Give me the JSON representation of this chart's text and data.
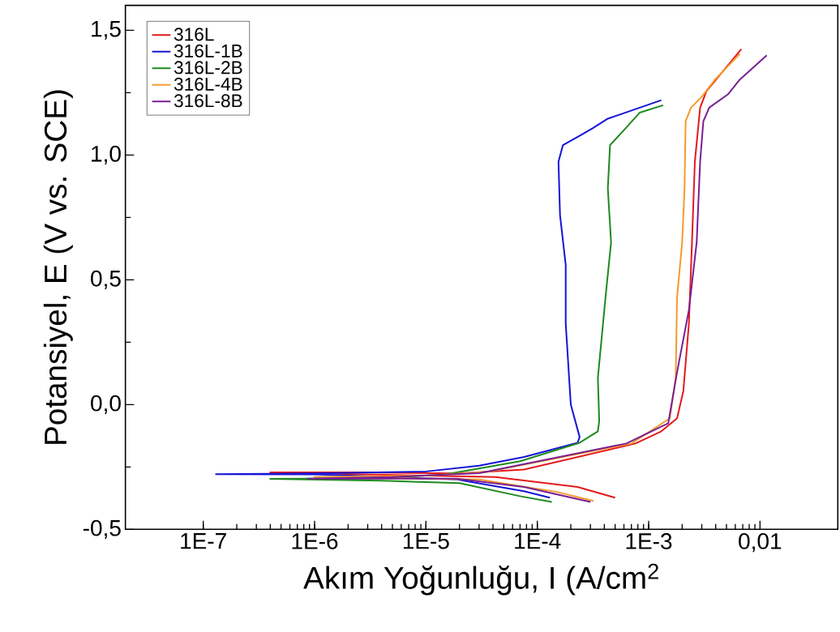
{
  "chart_data": {
    "type": "line",
    "xlabel": "Akım Yoğunluğu, I (A/cm$^{2}$",
    "ylabel": "Potansiyel, E (V vs. SCE)",
    "log": "x",
    "xlim": [
      2e-08,
      0.05
    ],
    "ylim": [
      -0.5,
      1.6
    ],
    "xticks": [
      {
        "value": 1e-07,
        "label": "1E-7"
      },
      {
        "value": 1e-06,
        "label": "1E-6"
      },
      {
        "value": 1e-05,
        "label": "1E-5"
      },
      {
        "value": 0.0001,
        "label": "1E-4"
      },
      {
        "value": 0.001,
        "label": "1E-3"
      },
      {
        "value": 0.01,
        "label": "0,01"
      }
    ],
    "yticks": [
      {
        "value": -0.5,
        "label": "-0,5"
      },
      {
        "value": 0,
        "label": "0,0"
      },
      {
        "value": 0.5,
        "label": "0,5"
      },
      {
        "value": 1.0,
        "label": "1,0"
      },
      {
        "value": 1.5,
        "label": "1,5"
      }
    ],
    "legend": "top left",
    "grid": false,
    "marker": "none",
    "line_style": "solid",
    "series": [
      {
        "name": "316L",
        "color": "#e31a1c",
        "x": [
          0.0005,
          0.00023,
          4.2e-05,
          1e-05,
          4e-07,
          3e-06,
          2e-05,
          7.6e-05,
          0.00076,
          0.0013,
          0.0018,
          0.00205,
          0.0023,
          0.00245,
          0.0026,
          0.0029,
          0.0033,
          0.0068
        ],
        "values": [
          -0.373,
          -0.33,
          -0.29,
          -0.285,
          -0.272,
          -0.272,
          -0.276,
          -0.26,
          -0.156,
          -0.107,
          -0.055,
          0.055,
          0.325,
          0.65,
          0.974,
          1.19,
          1.256,
          1.425
        ]
      },
      {
        "name": "316L-1B",
        "color": "#1414d8",
        "x": [
          0.00013,
          7.6e-05,
          1.9e-05,
          1e-06,
          1.3e-07,
          1e-06,
          1e-05,
          3e-05,
          7.6e-05,
          0.00023,
          0.00024,
          0.0002,
          0.00018,
          0.00018,
          0.00016,
          0.000155,
          0.00017,
          0.000245,
          0.00032,
          0.00043,
          0.0013
        ],
        "values": [
          -0.373,
          -0.347,
          -0.3,
          -0.28,
          -0.279,
          -0.276,
          -0.268,
          -0.245,
          -0.21,
          -0.153,
          -0.13,
          0.0,
          0.325,
          0.56,
          0.76,
          0.974,
          1.04,
          1.08,
          1.11,
          1.146,
          1.22
        ]
      },
      {
        "name": "316L-2B",
        "color": "#1e8a1e",
        "x": [
          0.000135,
          7e-05,
          2e-05,
          4e-06,
          4e-07,
          4e-06,
          1.5e-05,
          7e-05,
          0.00024,
          0.00035,
          0.00036,
          0.00035,
          0.00041,
          0.00046,
          0.00043,
          0.00045,
          0.0006,
          0.00083,
          0.00135
        ],
        "values": [
          -0.39,
          -0.367,
          -0.315,
          -0.305,
          -0.298,
          -0.295,
          -0.28,
          -0.227,
          -0.153,
          -0.107,
          -0.065,
          0.107,
          0.43,
          0.65,
          0.866,
          1.04,
          1.1,
          1.17,
          1.2
        ]
      },
      {
        "name": "316L-4B",
        "color": "#f59a2e",
        "x": [
          0.00032,
          0.00015,
          3e-05,
          1e-06,
          1e-05,
          3.5e-05,
          0.0007,
          0.00155,
          0.00175,
          0.0018,
          0.002,
          0.0021,
          0.00215,
          0.0024,
          0.003,
          0.0039,
          0.0066
        ],
        "values": [
          -0.386,
          -0.35,
          -0.3,
          -0.29,
          -0.285,
          -0.27,
          -0.156,
          -0.055,
          0.107,
          0.43,
          0.65,
          0.866,
          1.136,
          1.19,
          1.234,
          1.3,
          1.406
        ]
      },
      {
        "name": "316L-8B",
        "color": "#7a1f92",
        "x": [
          0.0003,
          7.6e-05,
          1.9e-05,
          8.7e-07,
          5e-06,
          3e-05,
          0.00063,
          0.0015,
          0.0018,
          0.0023,
          0.0027,
          0.0029,
          0.0031,
          0.0035,
          0.0052,
          0.0065,
          0.0115
        ],
        "values": [
          -0.39,
          -0.33,
          -0.297,
          -0.297,
          -0.29,
          -0.275,
          -0.156,
          -0.075,
          0.13,
          0.38,
          0.65,
          0.974,
          1.136,
          1.19,
          1.245,
          1.3,
          1.4
        ]
      }
    ]
  }
}
